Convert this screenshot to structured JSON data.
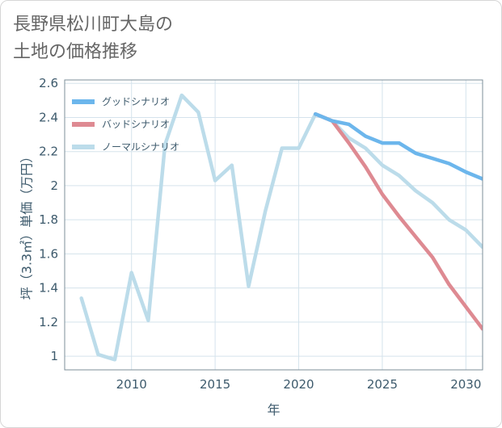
{
  "title_line1": "長野県松川町大島の",
  "title_line2": "土地の価格推移",
  "chart_data": {
    "type": "line",
    "xlabel": "年",
    "ylabel": "坪（3.3㎡）単価（万円）",
    "xlim": [
      2006,
      2031
    ],
    "ylim": [
      0.92,
      2.62
    ],
    "xticks": [
      2010,
      2015,
      2020,
      2025,
      2030
    ],
    "yticks": [
      1,
      1.2,
      1.4,
      1.6,
      1.8,
      2,
      2.2,
      2.4,
      2.6
    ],
    "ytick_labels": [
      "1",
      "1.2",
      "1.4",
      "1.6",
      "1.8",
      "2",
      "2.2",
      "2.4",
      "2.6"
    ],
    "grid": true,
    "legend_position": "top-left",
    "series": [
      {
        "name": "グッドシナリオ",
        "color": "#6cb6ec",
        "x": [
          2021,
          2022,
          2023,
          2024,
          2025,
          2026,
          2027,
          2028,
          2029,
          2030,
          2031
        ],
        "y": [
          2.42,
          2.38,
          2.36,
          2.29,
          2.25,
          2.25,
          2.19,
          2.16,
          2.13,
          2.08,
          2.04
        ]
      },
      {
        "name": "バッドシナリオ",
        "color": "#de8a92",
        "x": [
          2021,
          2022,
          2023,
          2024,
          2025,
          2026,
          2027,
          2028,
          2029,
          2030,
          2031
        ],
        "y": [
          2.42,
          2.38,
          2.25,
          2.11,
          1.95,
          1.82,
          1.7,
          1.58,
          1.42,
          1.29,
          1.16
        ]
      },
      {
        "name": "ノーマルシナリオ",
        "color": "#bcdcea",
        "x": [
          2007,
          2008,
          2009,
          2010,
          2011,
          2012,
          2013,
          2014,
          2015,
          2016,
          2017,
          2018,
          2019,
          2020,
          2021,
          2022,
          2023,
          2024,
          2025,
          2026,
          2027,
          2028,
          2029,
          2030,
          2031
        ],
        "y": [
          1.34,
          1.01,
          0.98,
          1.49,
          1.21,
          2.24,
          2.53,
          2.43,
          2.03,
          2.12,
          1.41,
          1.85,
          2.22,
          2.22,
          2.42,
          2.38,
          2.28,
          2.22,
          2.12,
          2.06,
          1.97,
          1.9,
          1.8,
          1.74,
          1.64
        ]
      }
    ]
  }
}
